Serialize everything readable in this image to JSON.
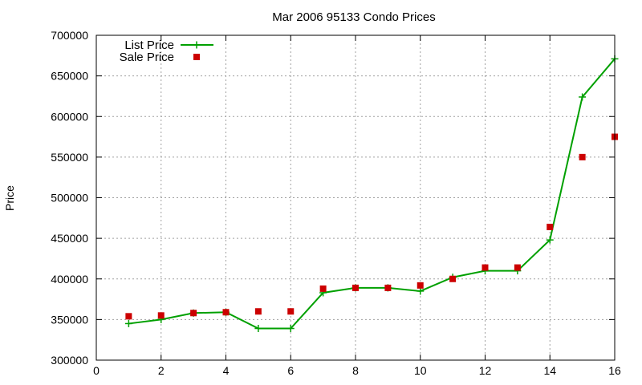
{
  "chart_data": {
    "type": "line",
    "title": "Mar 2006 95133 Condo Prices",
    "xlabel": "",
    "ylabel": "Price",
    "xlim": [
      0,
      16
    ],
    "ylim": [
      300000,
      700000
    ],
    "xticks": [
      0,
      2,
      4,
      6,
      8,
      10,
      12,
      14,
      16
    ],
    "yticks": [
      300000,
      350000,
      400000,
      450000,
      500000,
      550000,
      600000,
      650000,
      700000
    ],
    "grid": true,
    "legend_position": "top-left",
    "series": [
      {
        "name": "List Price",
        "style": "line+cross",
        "color": "#00a000",
        "x": [
          1,
          2,
          3,
          4,
          5,
          6,
          7,
          8,
          9,
          10,
          11,
          12,
          13,
          14,
          15,
          16
        ],
        "y": [
          345000,
          350000,
          358000,
          359000,
          339000,
          339000,
          383000,
          389000,
          389000,
          385000,
          402000,
          410000,
          410000,
          448000,
          624000,
          671000
        ]
      },
      {
        "name": "Sale Price",
        "style": "square",
        "color": "#cc0000",
        "x": [
          1,
          2,
          3,
          4,
          5,
          6,
          7,
          8,
          9,
          10,
          11,
          12,
          13,
          14,
          15,
          16
        ],
        "y": [
          354000,
          355000,
          358000,
          359000,
          360000,
          360000,
          388000,
          389000,
          389000,
          392000,
          400000,
          414000,
          414000,
          464000,
          550000,
          575000
        ]
      }
    ]
  }
}
